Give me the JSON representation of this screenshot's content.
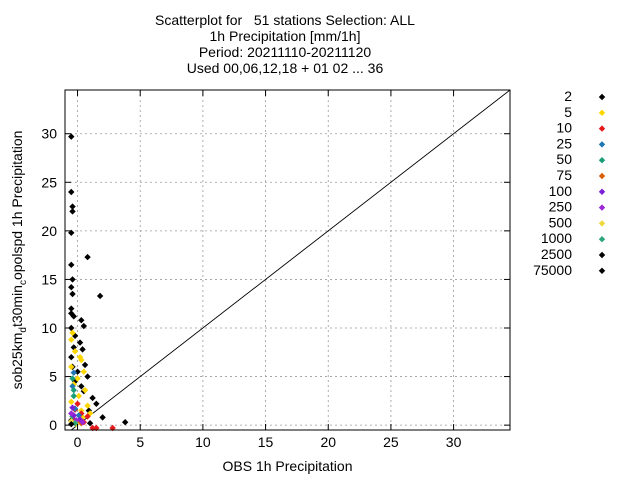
{
  "title_lines": [
    "Scatterplot for   51 stations Selection: ALL",
    "1h Precipitation [mm/1h]",
    "Period: 20211110-20211120",
    "Used 00,06,12,18 + 01 02 ... 36"
  ],
  "chart_data": {
    "type": "scatter",
    "title": "Scatterplot for   51 stations Selection: ALL",
    "subtitle": [
      "1h Precipitation [mm/1h]",
      "Period: 20211110-20211120",
      "Used 00,06,12,18 + 01 02 ... 36"
    ],
    "xlabel": "OBS 1h Precipitation",
    "ylabel": "sob25km_dt30min_copolspd 1h Precipitation",
    "ylabel_parts": {
      "base": "sob25km",
      "sub1": "d",
      "mid": "t30min",
      "sub2": "c",
      "tail": "opolspd 1h Precipitation"
    },
    "xlim": [
      -1,
      34.5
    ],
    "ylim": [
      -0.5,
      34.5
    ],
    "xticks": [
      0,
      5,
      10,
      15,
      20,
      25,
      30
    ],
    "yticks": [
      0,
      5,
      10,
      15,
      20,
      25,
      30
    ],
    "grid": true,
    "diagonal": true,
    "legend_position": "right",
    "series": [
      {
        "name": "2",
        "color": "#000000",
        "points": [
          [
            -0.5,
            29.7
          ],
          [
            -0.5,
            24.0
          ],
          [
            -0.4,
            22.5
          ],
          [
            -0.4,
            22.0
          ],
          [
            -0.5,
            19.8
          ],
          [
            0.8,
            17.3
          ],
          [
            -0.5,
            16.5
          ],
          [
            -0.4,
            15.0
          ],
          [
            -0.5,
            14.2
          ],
          [
            -0.4,
            13.5
          ],
          [
            1.8,
            13.3
          ],
          [
            -0.5,
            12.0
          ],
          [
            -0.3,
            11.2
          ],
          [
            0.3,
            10.8
          ],
          [
            -0.5,
            10.0
          ],
          [
            0.5,
            10.2
          ],
          [
            -0.2,
            9.2
          ],
          [
            0.2,
            8.5
          ],
          [
            0.4,
            7.8
          ],
          [
            -0.5,
            7.0
          ],
          [
            0.6,
            6.2
          ],
          [
            0.0,
            5.5
          ],
          [
            0.8,
            5.0
          ],
          [
            -0.2,
            4.5
          ],
          [
            0.5,
            3.5
          ],
          [
            1.2,
            2.8
          ],
          [
            1.5,
            2.2
          ],
          [
            0.9,
            1.5
          ],
          [
            2.0,
            0.8
          ],
          [
            -0.5,
            0.5
          ],
          [
            3.8,
            0.3
          ],
          [
            1.0,
            0.2
          ],
          [
            -0.3,
            8.0
          ],
          [
            -0.4,
            6.0
          ],
          [
            -0.5,
            11.5
          ],
          [
            0.3,
            4.0
          ]
        ]
      },
      {
        "name": "5",
        "color": "#ffd700",
        "points": [
          [
            -0.5,
            8.8
          ],
          [
            -0.2,
            7.6
          ],
          [
            0.3,
            6.7
          ],
          [
            -0.5,
            6.0
          ],
          [
            0.5,
            5.5
          ],
          [
            0.0,
            4.8
          ],
          [
            -0.3,
            4.2
          ],
          [
            0.6,
            3.6
          ],
          [
            0.1,
            3.0
          ],
          [
            -0.5,
            2.4
          ],
          [
            0.8,
            2.0
          ],
          [
            0.3,
            1.5
          ],
          [
            1.0,
            1.2
          ],
          [
            0.4,
            0.8
          ],
          [
            -0.4,
            9.5
          ],
          [
            0.2,
            7.0
          ]
        ]
      },
      {
        "name": "10",
        "color": "#e41a1c",
        "points": [
          [
            0.0,
            2.2
          ],
          [
            -0.2,
            1.6
          ],
          [
            0.3,
            1.2
          ],
          [
            0.8,
            0.9
          ],
          [
            1.5,
            -0.5
          ],
          [
            1.2,
            -0.5
          ],
          [
            2.8,
            -0.5
          ],
          [
            -0.3,
            0.6
          ],
          [
            0.5,
            0.3
          ]
        ]
      },
      {
        "name": "25",
        "color": "#1f77b4",
        "points": [
          [
            -0.3,
            5.4
          ],
          [
            -0.4,
            4.0
          ],
          [
            -0.2,
            1.7
          ],
          [
            0.1,
            1.0
          ]
        ]
      },
      {
        "name": "50",
        "color": "#1a9e77",
        "points": [
          [
            -0.4,
            4.8
          ],
          [
            -0.3,
            3.6
          ],
          [
            -0.3,
            3.0
          ],
          [
            -0.4,
            0.9
          ]
        ]
      },
      {
        "name": "75",
        "color": "#d95f02",
        "points": [
          [
            0.1,
            0.4
          ],
          [
            0.3,
            0.2
          ]
        ]
      },
      {
        "name": "100",
        "color": "#7b1fd6",
        "points": [
          [
            -0.4,
            1.8
          ],
          [
            -0.3,
            1.0
          ],
          [
            0.2,
            0.6
          ]
        ]
      },
      {
        "name": "250",
        "color": "#9c27d9",
        "points": [
          [
            -0.5,
            1.2
          ],
          [
            -0.1,
            0.5
          ],
          [
            0.4,
            0.3
          ]
        ]
      },
      {
        "name": "500",
        "color": "#f0d73a",
        "points": [
          [
            -0.5,
            0.4
          ],
          [
            -0.1,
            0.1
          ]
        ]
      },
      {
        "name": "1000",
        "color": "#2ea67b",
        "points": [
          [
            -0.2,
            0.2
          ]
        ]
      },
      {
        "name": "2500",
        "color": "#000000",
        "points": [
          [
            -0.5,
            0.1
          ]
        ]
      },
      {
        "name": "75000",
        "color": "#000000",
        "points": []
      }
    ]
  }
}
